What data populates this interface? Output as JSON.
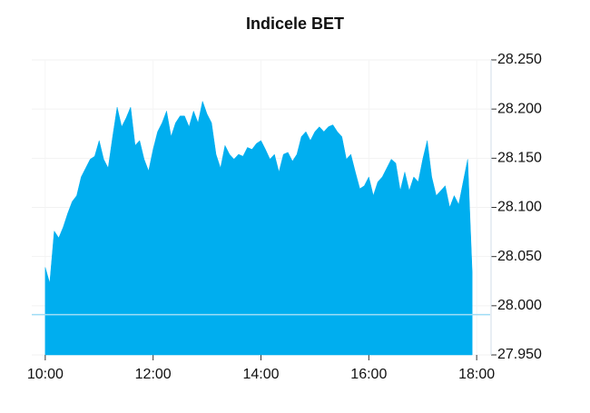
{
  "chart_data": {
    "type": "area",
    "title": "Indicele BET",
    "color": "#00aeef",
    "reference_color": "#9fdcf5",
    "reference_value": 27991,
    "x": [
      "10:00",
      "10:05",
      "10:10",
      "10:15",
      "10:20",
      "10:25",
      "10:30",
      "10:35",
      "10:40",
      "10:45",
      "10:50",
      "10:55",
      "11:00",
      "11:05",
      "11:10",
      "11:15",
      "11:20",
      "11:25",
      "11:30",
      "11:35",
      "11:40",
      "11:45",
      "11:50",
      "11:55",
      "12:00",
      "12:05",
      "12:10",
      "12:15",
      "12:20",
      "12:25",
      "12:30",
      "12:35",
      "12:40",
      "12:45",
      "12:50",
      "12:55",
      "13:00",
      "13:05",
      "13:10",
      "13:15",
      "13:20",
      "13:25",
      "13:30",
      "13:35",
      "13:40",
      "13:45",
      "13:50",
      "13:55",
      "14:00",
      "14:05",
      "14:10",
      "14:15",
      "14:20",
      "14:25",
      "14:30",
      "14:35",
      "14:40",
      "14:45",
      "14:50",
      "14:55",
      "15:00",
      "15:05",
      "15:10",
      "15:15",
      "15:20",
      "15:25",
      "15:30",
      "15:35",
      "15:40",
      "15:45",
      "15:50",
      "15:55",
      "16:00",
      "16:05",
      "16:10",
      "16:15",
      "16:20",
      "16:25",
      "16:30",
      "16:35",
      "16:40",
      "16:45",
      "16:50",
      "16:55",
      "17:00",
      "17:05",
      "17:10",
      "17:15",
      "17:20",
      "17:25",
      "17:30",
      "17:35",
      "17:40",
      "17:45",
      "17:50",
      "17:55"
    ],
    "values": [
      28039,
      28023,
      28076,
      28069,
      28080,
      28094,
      28106,
      28112,
      28131,
      28140,
      28149,
      28152,
      28168,
      28149,
      28140,
      28172,
      28202,
      28182,
      28191,
      28202,
      28163,
      28168,
      28149,
      28137,
      28159,
      28177,
      28186,
      28198,
      28172,
      28186,
      28193,
      28193,
      28182,
      28198,
      28186,
      28208,
      28195,
      28186,
      28154,
      28140,
      28163,
      28154,
      28149,
      28154,
      28152,
      28161,
      28159,
      28165,
      28168,
      28159,
      28149,
      28154,
      28136,
      28154,
      28156,
      28147,
      28154,
      28172,
      28177,
      28168,
      28177,
      28182,
      28177,
      28182,
      28184,
      28177,
      28172,
      28149,
      28154,
      28136,
      28119,
      28122,
      28131,
      28112,
      28126,
      28131,
      28140,
      28149,
      28145,
      28117,
      28136,
      28117,
      28131,
      28126,
      28149,
      28168,
      28131,
      28112,
      28117,
      28122,
      28100,
      28112,
      28103,
      28126,
      28149,
      28034
    ],
    "xlim": [
      "09:45",
      "18:15"
    ],
    "xticks": [
      "10:00",
      "12:00",
      "14:00",
      "16:00",
      "18:00"
    ],
    "ylim": [
      27950,
      28250
    ],
    "yticks": [
      {
        "value": 27950,
        "label": "27.950"
      },
      {
        "value": 28000,
        "label": "28.000"
      },
      {
        "value": 28050,
        "label": "28.050"
      },
      {
        "value": 28100,
        "label": "28.100"
      },
      {
        "value": 28150,
        "label": "28.150"
      },
      {
        "value": 28200,
        "label": "28.200"
      },
      {
        "value": 28250,
        "label": "28.250"
      }
    ],
    "grid": true
  }
}
